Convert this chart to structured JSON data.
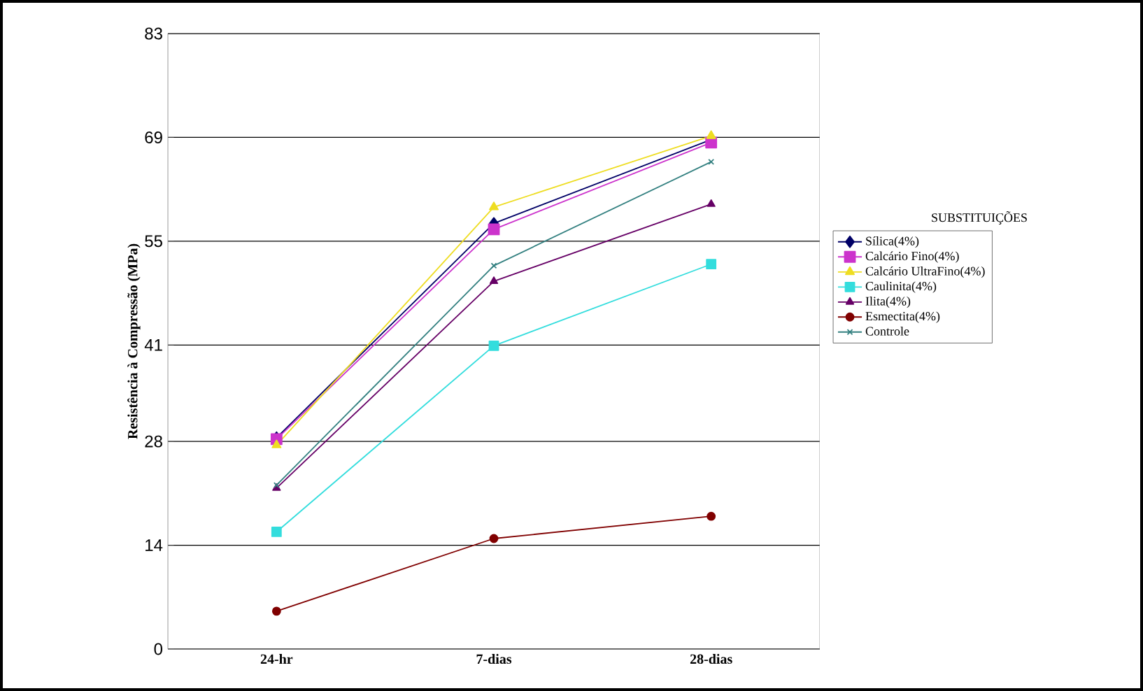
{
  "chart_data": {
    "type": "line",
    "ylabel": "Resistência à Compressão (MPa)",
    "legend_title": "SUBSTITUIÇÕES",
    "categories": [
      "24-hr",
      "7-dias",
      "28-dias"
    ],
    "series": [
      {
        "name": "Sílica(4%)",
        "color": "#000066",
        "marker": "diamond",
        "values": [
          28.5,
          57.4,
          68.7
        ]
      },
      {
        "name": "Calcário Fino(4%)",
        "color": "#cc33cc",
        "marker": "square",
        "values": [
          28.3,
          56.6,
          68.3
        ]
      },
      {
        "name": "Calcário UltraFino(4%)",
        "color": "#eedd22",
        "marker": "triangle",
        "values": [
          27.5,
          59.6,
          69.2
        ]
      },
      {
        "name": "Caulinita(4%)",
        "color": "#33dddd",
        "marker": "square",
        "values": [
          15.8,
          40.9,
          51.9
        ]
      },
      {
        "name": "Ilita(4%)",
        "color": "#660066",
        "marker": "triangle",
        "values": [
          21.7,
          49.6,
          60.0
        ]
      },
      {
        "name": "Esmectita(4%)",
        "color": "#800000",
        "marker": "circle",
        "values": [
          5.1,
          14.9,
          17.9
        ]
      },
      {
        "name": "Controle",
        "color": "#338080",
        "marker": "cross",
        "values": [
          22.1,
          51.7,
          65.7
        ]
      }
    ],
    "ylim": [
      0,
      83
    ],
    "yticks": [
      0,
      14,
      28,
      41,
      55,
      69,
      83
    ],
    "grid": "y",
    "legend": "right"
  }
}
